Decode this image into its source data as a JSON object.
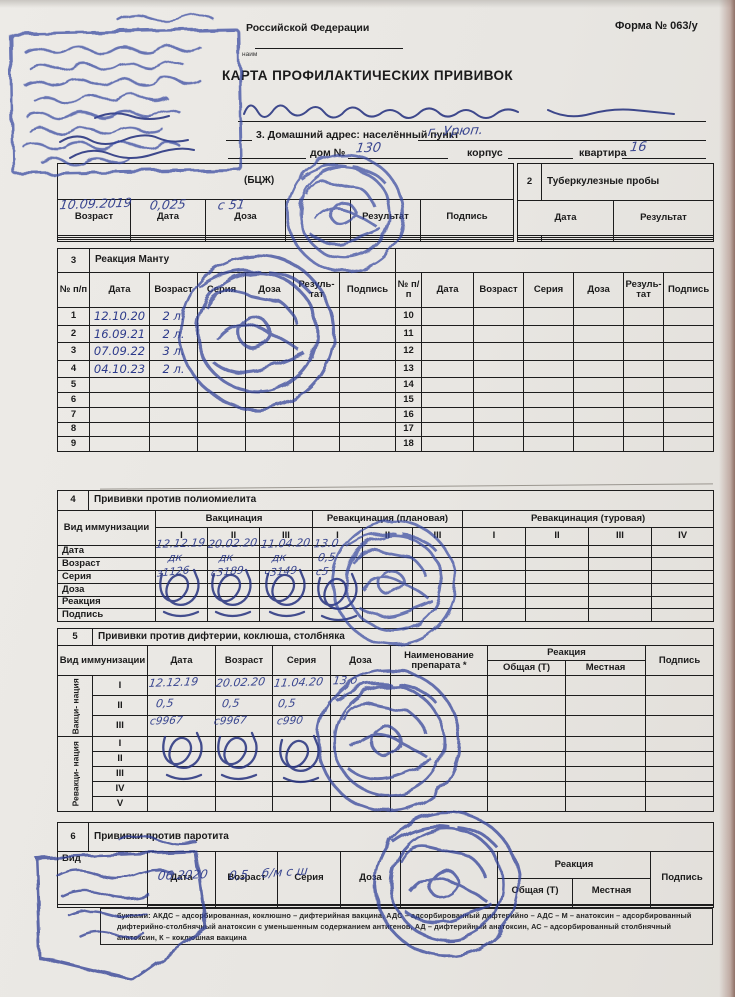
{
  "colors": {
    "stamp_blue": "#3647a0",
    "ink_navy": "#2c3a8a",
    "paper": "#e9e6e1"
  },
  "page": {
    "form_number": "Форма № 063/у",
    "ministry_fragment": "Российской Федерации",
    "ministry_caption": "наим",
    "title": "КАРТА ПРОФИЛАКТИЧЕСКИХ ПРИВИВОК",
    "address_label": "3. Домашний адрес: населённый пункт",
    "house_label": "дом №",
    "building_label": "корпус",
    "apartment_label": "квартира"
  },
  "handwriting": {
    "settlement": "г. Урюп.",
    "house": "130",
    "apartment": "16",
    "t1": {
      "age": "10.09.2019",
      "date": "0,025",
      "dose": "с 51"
    },
    "t4": {
      "dates": [
        "12.12.19",
        "20.02.20",
        "11.04.20",
        "13.0"
      ],
      "ages": [
        "дк",
        "дк",
        "дк",
        "0,5"
      ],
      "series": [
        "з1126",
        "с3189",
        "ч3149",
        "с5"
      ]
    },
    "t5": {
      "row1": [
        "12.12.19",
        "20.02.20",
        "11.04.20",
        "13 о"
      ],
      "row2": [
        "0,5",
        "0,5",
        "0,5"
      ],
      "row3": [
        "с9967",
        "с9967",
        "с990"
      ]
    },
    "t6": {
      "date": "06.2020",
      "age": "0,5",
      "series": "б/м с ш"
    }
  },
  "t1": {
    "title_fragment": "(БЦЖ)",
    "headers": [
      "Возраст",
      "Дата",
      "Доза",
      "",
      "Результат",
      "Подпись"
    ],
    "empty_rows": 3
  },
  "t2": {
    "num": "2",
    "title": "Туберкулезные пробы",
    "headers": [
      "Дата",
      "Результат"
    ],
    "empty_rows": 3
  },
  "t3": {
    "num": "3",
    "title": "Реакция Манту",
    "headers": {
      "num": "№ п/п",
      "date": "Дата",
      "age": "Возраст",
      "series": "Серия",
      "dose": "Доза",
      "result": "Резуль- тат",
      "sign": "Подпись"
    },
    "left_rows": [
      {
        "n": "1",
        "date": "12.10.20",
        "age": "2 л."
      },
      {
        "n": "2",
        "date": "16.09.21",
        "age": "2 л."
      },
      {
        "n": "3",
        "date": "07.09.22",
        "age": "3 л."
      },
      {
        "n": "4",
        "date": "04.10.23",
        "age": "2 л."
      },
      {
        "n": "5"
      },
      {
        "n": "6"
      },
      {
        "n": "7"
      },
      {
        "n": "8"
      },
      {
        "n": "9"
      }
    ],
    "right_rows": [
      {
        "n": "10"
      },
      {
        "n": "11"
      },
      {
        "n": "12"
      },
      {
        "n": "13"
      },
      {
        "n": "14"
      },
      {
        "n": "15"
      },
      {
        "n": "16"
      },
      {
        "n": "17"
      },
      {
        "n": "18"
      }
    ]
  },
  "t4": {
    "num": "4",
    "title": "Прививки против полиомиелита",
    "vid": "Вид иммунизации",
    "group1": "Вакцинация",
    "group2": "Ревакцинация (плановая)",
    "group3": "Ревакцинация (туровая)",
    "sub": [
      "I",
      "II",
      "III",
      "I",
      "II",
      "III",
      "I",
      "II",
      "III",
      "IV"
    ],
    "row_labels": [
      "Дата",
      "Возраст",
      "Серия",
      "Доза",
      "Реакция",
      "Подпись"
    ]
  },
  "t5": {
    "num": "5",
    "title": "Прививки против дифтерии, коклюша, столбняка",
    "vid": "Вид иммунизации",
    "date": "Дата",
    "age": "Возраст",
    "series": "Серия",
    "dose": "Доза",
    "drug": "Наименование препарата *",
    "reaction": "Реакция",
    "common": "Общая (Т)",
    "local": "Местная",
    "sign": "Подпись",
    "vacc_label": "Вакци- нация",
    "revacc_label": "Ревакци- нация",
    "vacc_rows": [
      "I",
      "II",
      "III"
    ],
    "revacc_rows": [
      "I",
      "II",
      "III",
      "IV",
      "V"
    ]
  },
  "t6": {
    "num": "6",
    "title": "Прививки против паротита",
    "vid": "Вид",
    "date": "Дата",
    "age": "Возраст",
    "series": "Серия",
    "dose": "Доза",
    "drug": "",
    "reaction": "Реакция",
    "common": "Общая (Т)",
    "local": "Местная",
    "sign": "Подпись",
    "empty_rows": 2
  },
  "footnote": {
    "l1": "буквами: АКДС – адсорбированная, коклюшно – дифтерийная вакцина, АДС – адсорбированный дифтерийно –",
    "l2": "АДС – М – анатоксин – адсорбированный дифтерийно-столбнячный анатоксин с уменьшенным содержанием антигенов, АД –",
    "l3": "дифтерийный анатоксин, АС – адсорбированный столбнячный анатоксин, К – коклюшная вакцина"
  }
}
